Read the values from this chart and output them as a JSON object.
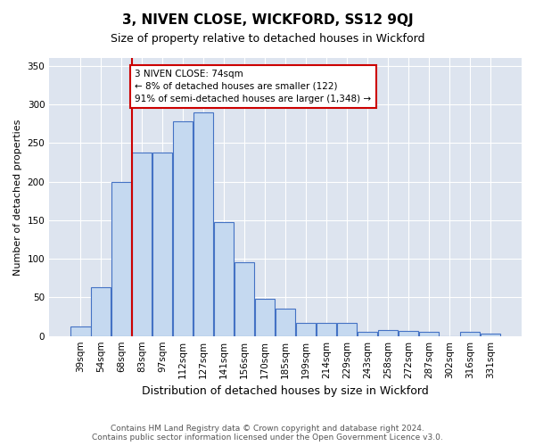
{
  "title": "3, NIVEN CLOSE, WICKFORD, SS12 9QJ",
  "subtitle": "Size of property relative to detached houses in Wickford",
  "xlabel": "Distribution of detached houses by size in Wickford",
  "ylabel": "Number of detached properties",
  "footer_line1": "Contains HM Land Registry data © Crown copyright and database right 2024.",
  "footer_line2": "Contains public sector information licensed under the Open Government Licence v3.0.",
  "categories": [
    "39sqm",
    "54sqm",
    "68sqm",
    "83sqm",
    "97sqm",
    "112sqm",
    "127sqm",
    "141sqm",
    "156sqm",
    "170sqm",
    "185sqm",
    "199sqm",
    "214sqm",
    "229sqm",
    "243sqm",
    "258sqm",
    "272sqm",
    "287sqm",
    "302sqm",
    "316sqm",
    "331sqm"
  ],
  "values": [
    12,
    63,
    200,
    238,
    238,
    278,
    290,
    148,
    96,
    48,
    35,
    17,
    17,
    17,
    5,
    8,
    7,
    5,
    0,
    5,
    3
  ],
  "bar_color": "#c5d9f0",
  "bar_edge_color": "#4472c4",
  "annotation_line1": "3 NIVEN CLOSE: 74sqm",
  "annotation_line2": "← 8% of detached houses are smaller (122)",
  "annotation_line3": "91% of semi-detached houses are larger (1,348) →",
  "annotation_box_facecolor": "#ffffff",
  "annotation_box_edgecolor": "#cc0000",
  "red_line_index": 2.5,
  "ylim": [
    0,
    360
  ],
  "yticks": [
    0,
    50,
    100,
    150,
    200,
    250,
    300,
    350
  ],
  "fig_facecolor": "#ffffff",
  "axes_facecolor": "#dde4ef",
  "grid_color": "#ffffff",
  "title_fontsize": 11,
  "subtitle_fontsize": 9,
  "ylabel_fontsize": 8,
  "xlabel_fontsize": 9,
  "footer_fontsize": 6.5,
  "tick_fontsize": 7.5
}
